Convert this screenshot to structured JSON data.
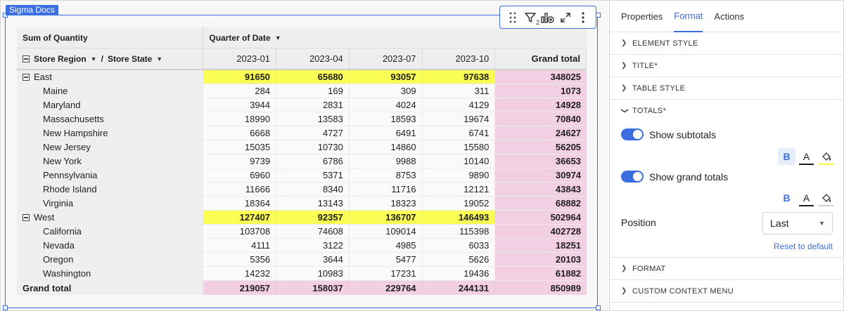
{
  "canvas": {
    "element_tag": "Sigma Docs"
  },
  "toolbar": {
    "icons": [
      "drag-handle-icon",
      "filter-icon",
      "add-chart-icon",
      "expand-icon",
      "more-icon"
    ],
    "filter_badge": "2"
  },
  "pivot": {
    "value_header": "Sum of Quantity",
    "column_header": "Quarter of Date",
    "row_headers": [
      "Store Region",
      "Store State"
    ],
    "row_header_separator": "/",
    "columns": [
      "2023-01",
      "2023-04",
      "2023-07",
      "2023-10"
    ],
    "grand_total_label": "Grand total",
    "groups": [
      {
        "name": "East",
        "subtotals": [
          "91650",
          "65680",
          "93057",
          "97638"
        ],
        "grand_total": "348025",
        "rows": [
          {
            "label": "Maine",
            "values": [
              "284",
              "169",
              "309",
              "311"
            ],
            "total": "1073"
          },
          {
            "label": "Maryland",
            "values": [
              "3944",
              "2831",
              "4024",
              "4129"
            ],
            "total": "14928"
          },
          {
            "label": "Massachusetts",
            "values": [
              "18990",
              "13583",
              "18593",
              "19674"
            ],
            "total": "70840"
          },
          {
            "label": "New Hampshire",
            "values": [
              "6668",
              "4727",
              "6491",
              "6741"
            ],
            "total": "24627"
          },
          {
            "label": "New Jersey",
            "values": [
              "15035",
              "10730",
              "14860",
              "15580"
            ],
            "total": "56205"
          },
          {
            "label": "New York",
            "values": [
              "9739",
              "6786",
              "9988",
              "10140"
            ],
            "total": "36653"
          },
          {
            "label": "Pennsylvania",
            "values": [
              "6960",
              "5371",
              "8753",
              "9890"
            ],
            "total": "30974"
          },
          {
            "label": "Rhode Island",
            "values": [
              "11666",
              "8340",
              "11716",
              "12121"
            ],
            "total": "43843"
          },
          {
            "label": "Virginia",
            "values": [
              "18364",
              "13143",
              "18323",
              "19052"
            ],
            "total": "68882"
          }
        ]
      },
      {
        "name": "West",
        "subtotals": [
          "127407",
          "92357",
          "136707",
          "146493"
        ],
        "grand_total": "502964",
        "rows": [
          {
            "label": "California",
            "values": [
              "103708",
              "74608",
              "109014",
              "115398"
            ],
            "total": "402728"
          },
          {
            "label": "Nevada",
            "values": [
              "4111",
              "3122",
              "4985",
              "6033"
            ],
            "total": "18251"
          },
          {
            "label": "Oregon",
            "values": [
              "5356",
              "3644",
              "5477",
              "5626"
            ],
            "total": "20103"
          },
          {
            "label": "Washington",
            "values": [
              "14232",
              "10983",
              "17231",
              "19436"
            ],
            "total": "61882"
          }
        ]
      }
    ],
    "grand_totals": [
      "219057",
      "158037",
      "229764",
      "244131"
    ],
    "grand_grand_total": "850989",
    "colors": {
      "subtotal_fill": "#fafd54",
      "grand_total_fill": "#f3cfe3"
    }
  },
  "panel": {
    "tabs": [
      "Properties",
      "Format",
      "Actions"
    ],
    "active_tab": "Format",
    "sections_top": [
      "ELEMENT STYLE",
      "TITLE*",
      "TABLE STYLE"
    ],
    "totals": {
      "title": "TOTALS*",
      "show_subtotals_label": "Show subtotals",
      "show_subtotals": true,
      "show_grand_totals_label": "Show grand totals",
      "show_grand_totals": true,
      "bold_label": "B",
      "text_color_label": "A",
      "subtotal_fill_color": "#f2f542",
      "position_label": "Position",
      "position_value": "Last",
      "reset_label": "Reset to default"
    },
    "sections_bottom": [
      "FORMAT",
      "CUSTOM CONTEXT MENU"
    ],
    "accent_color": "#3b6ee0"
  }
}
